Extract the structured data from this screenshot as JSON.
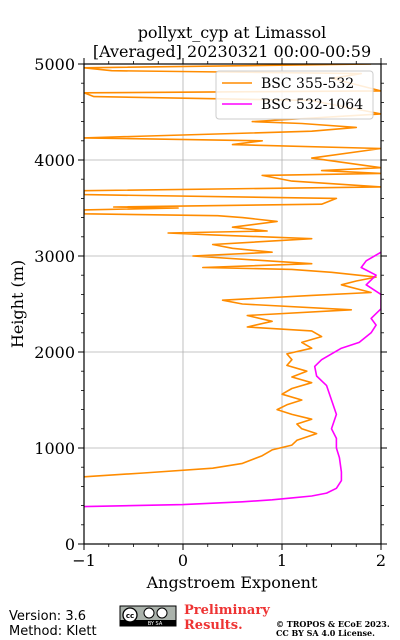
{
  "footer": {
    "version": "Version: 3.6",
    "method": "Method: Klett",
    "license_badge": {
      "left": "cc",
      "right": "BY SA"
    },
    "preliminary_line1": "Preliminary",
    "preliminary_line2": "Results.",
    "copyright_line1": "© TROPOS & ECoE 2023.",
    "copyright_line2": "CC BY SA 4.0 License."
  },
  "colors": {
    "bsc_355_532": "#ff8c00",
    "bsc_532_1064": "#ff00ff",
    "grid": "#b0b0b0",
    "prelim_text": "#ee3333"
  },
  "chart_data": {
    "type": "line",
    "title": "pollyxt_cyp at Limassol",
    "subtitle": "[Averaged] 20230321 00:00-00:59",
    "xlabel": "Angstroem Exponent",
    "ylabel": "Height (m)",
    "xlim": [
      -1,
      2
    ],
    "ylim": [
      0,
      5000
    ],
    "xticks": [
      -1,
      0,
      1,
      2
    ],
    "xtick_labels": [
      "−1",
      "0",
      "1",
      "2"
    ],
    "yticks": [
      0,
      1000,
      2000,
      3000,
      4000,
      5000
    ],
    "ytick_labels": [
      "0",
      "1000",
      "2000",
      "3000",
      "4000",
      "5000"
    ],
    "grid": true,
    "legend_position": "top-right",
    "series": [
      {
        "name": "BSC 355-532",
        "color": "#ff8c00",
        "points": [
          [
            -1.0,
            700
          ],
          [
            -0.4,
            740
          ],
          [
            0.3,
            790
          ],
          [
            0.6,
            840
          ],
          [
            0.8,
            920
          ],
          [
            0.9,
            980
          ],
          [
            1.1,
            1030
          ],
          [
            1.15,
            1080
          ],
          [
            1.35,
            1150
          ],
          [
            1.2,
            1200
          ],
          [
            1.15,
            1250
          ],
          [
            1.3,
            1300
          ],
          [
            1.1,
            1350
          ],
          [
            0.95,
            1400
          ],
          [
            1.05,
            1450
          ],
          [
            1.2,
            1500
          ],
          [
            1.0,
            1560
          ],
          [
            1.1,
            1620
          ],
          [
            1.3,
            1680
          ],
          [
            1.1,
            1740
          ],
          [
            1.25,
            1800
          ],
          [
            1.05,
            1860
          ],
          [
            1.1,
            1920
          ],
          [
            1.05,
            1980
          ],
          [
            1.3,
            2040
          ],
          [
            1.2,
            2100
          ],
          [
            1.4,
            2160
          ],
          [
            1.3,
            2220
          ],
          [
            0.65,
            2260
          ],
          [
            0.9,
            2320
          ],
          [
            0.65,
            2380
          ],
          [
            1.7,
            2440
          ],
          [
            0.6,
            2500
          ],
          [
            0.4,
            2540
          ],
          [
            1.3,
            2590
          ],
          [
            1.9,
            2620
          ],
          [
            1.6,
            2700
          ],
          [
            1.75,
            2740
          ],
          [
            1.95,
            2780
          ],
          [
            1.5,
            2830
          ],
          [
            1.1,
            2860
          ],
          [
            0.2,
            2880
          ],
          [
            1.3,
            2920
          ],
          [
            0.1,
            3000
          ],
          [
            0.9,
            3040
          ],
          [
            0.5,
            3080
          ],
          [
            0.3,
            3120
          ],
          [
            1.3,
            3180
          ],
          [
            0.3,
            3220
          ],
          [
            -0.15,
            3240
          ],
          [
            0.85,
            3260
          ],
          [
            0.5,
            3300
          ],
          [
            0.95,
            3360
          ],
          [
            0.6,
            3400
          ],
          [
            0.35,
            3420
          ],
          [
            -1.0,
            3440
          ],
          [
            -1.0,
            3480
          ],
          [
            -0.05,
            3500
          ],
          [
            -0.7,
            3510
          ],
          [
            1.4,
            3540
          ],
          [
            1.55,
            3600
          ],
          [
            -1.0,
            3640
          ],
          [
            -1.0,
            3680
          ],
          [
            2.0,
            3720
          ],
          [
            1.1,
            3780
          ],
          [
            0.8,
            3840
          ],
          [
            2.0,
            3860
          ],
          [
            1.4,
            3890
          ],
          [
            2.0,
            3920
          ],
          [
            1.3,
            4020
          ],
          [
            2.0,
            4120
          ],
          [
            0.5,
            4160
          ],
          [
            0.8,
            4200
          ],
          [
            -1.0,
            4230
          ],
          [
            1.3,
            4300
          ],
          [
            1.75,
            4340
          ],
          [
            1.2,
            4380
          ],
          [
            0.7,
            4400
          ],
          [
            2.0,
            4480
          ],
          [
            1.3,
            4620
          ],
          [
            -0.9,
            4660
          ],
          [
            -1.0,
            4700
          ],
          [
            2.0,
            4720
          ],
          [
            1.5,
            4850
          ],
          [
            1.8,
            4900
          ],
          [
            -0.72,
            4930
          ],
          [
            -1.0,
            4960
          ],
          [
            1.9,
            5000
          ]
        ]
      },
      {
        "name": "BSC 532-1064",
        "color": "#ff00ff",
        "points": [
          [
            -1.0,
            390
          ],
          [
            0.0,
            410
          ],
          [
            0.6,
            440
          ],
          [
            0.9,
            460
          ],
          [
            1.1,
            480
          ],
          [
            1.3,
            500
          ],
          [
            1.45,
            530
          ],
          [
            1.55,
            580
          ],
          [
            1.6,
            660
          ],
          [
            1.6,
            750
          ],
          [
            1.58,
            900
          ],
          [
            1.55,
            1000
          ],
          [
            1.55,
            1100
          ],
          [
            1.5,
            1200
          ],
          [
            1.55,
            1350
          ],
          [
            1.5,
            1500
          ],
          [
            1.45,
            1650
          ],
          [
            1.35,
            1750
          ],
          [
            1.33,
            1850
          ],
          [
            1.4,
            1920
          ],
          [
            1.5,
            1980
          ],
          [
            1.6,
            2040
          ],
          [
            1.78,
            2100
          ],
          [
            1.9,
            2200
          ],
          [
            1.95,
            2280
          ],
          [
            1.9,
            2350
          ],
          [
            1.95,
            2400
          ],
          [
            2.0,
            2450
          ],
          [
            2.0,
            2600
          ],
          [
            1.85,
            2700
          ],
          [
            1.95,
            2800
          ],
          [
            1.8,
            2880
          ],
          [
            1.85,
            2950
          ],
          [
            2.0,
            3040
          ]
        ]
      }
    ]
  }
}
